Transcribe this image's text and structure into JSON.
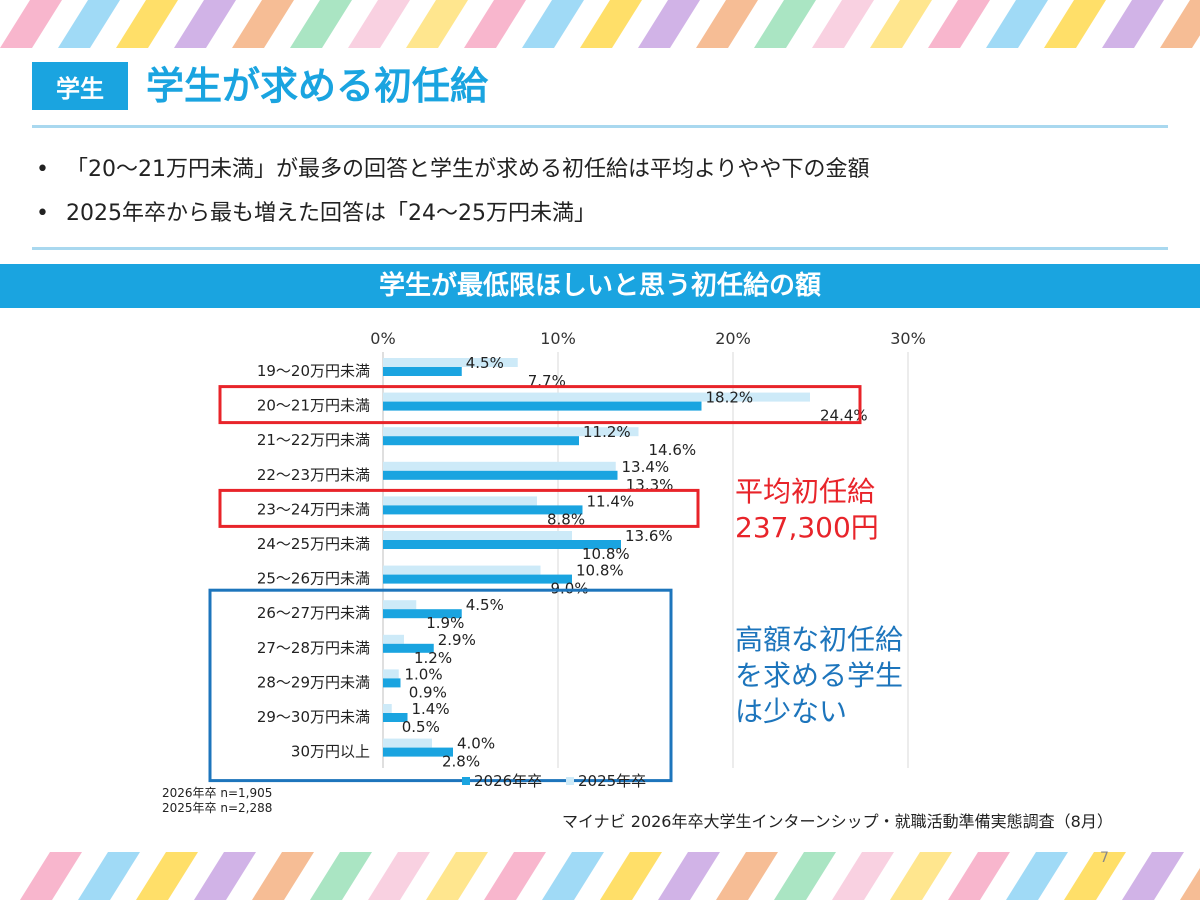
{
  "header": {
    "tag": "学生",
    "title": "学生が求める初任給"
  },
  "bullets": [
    "「20～21万円未満」が最多の回答と学生が求める初任給は平均よりやや下の金額",
    "2025年卒から最も増えた回答は「24～25万円未満」"
  ],
  "banner": "学生が最低限ほしいと思う初任給の額",
  "callouts": {
    "average_line1": "平均初任給",
    "average_line2": "237,300円",
    "high_line1": "高額な初任給",
    "high_line2": "を求める学生",
    "high_line3": "は少ない"
  },
  "footnote": {
    "line1": "2026年卒 n=1,905",
    "line2": "2025年卒 n=2,288"
  },
  "source": "マイナビ 2026年卒大学生インターンシップ・就職活動準備実態調査（8月）",
  "page_number": "7",
  "colors": {
    "accent": "#1aa4e0",
    "series_2026": "#1aa4e0",
    "series_2025": "#cdeaf8",
    "highlight_red": "#e8242a",
    "highlight_blue": "#1d75bc"
  },
  "chart_data": {
    "type": "bar",
    "orientation": "horizontal",
    "categories": [
      "19～20万円未満",
      "20～21万円未満",
      "21～22万円未満",
      "22～23万円未満",
      "23～24万円未満",
      "24～25万円未満",
      "25～26万円未満",
      "26～27万円未満",
      "27～28万円未満",
      "28～29万円未満",
      "29～30万円未満",
      "30万円以上"
    ],
    "series": [
      {
        "name": "2026年卒",
        "values": [
          4.5,
          18.2,
          11.2,
          13.4,
          11.4,
          13.6,
          10.8,
          4.5,
          2.9,
          1.0,
          1.4,
          4.0
        ]
      },
      {
        "name": "2025年卒",
        "values": [
          7.7,
          24.4,
          14.6,
          13.3,
          8.8,
          10.8,
          9.0,
          1.9,
          1.2,
          0.9,
          0.5,
          2.8
        ]
      }
    ],
    "x_ticks": [
      "0%",
      "10%",
      "20%",
      "30%"
    ],
    "xlim": [
      0,
      30
    ],
    "value_suffix": "%",
    "grid": true,
    "legend_position": "bottom",
    "highlight_red_categories": [
      "20～21万円未満",
      "23～24万円未満"
    ],
    "highlight_blue_categories": [
      "26～27万円未満",
      "27～28万円未満",
      "28～29万円未満",
      "29～30万円未満",
      "30万円以上"
    ]
  }
}
